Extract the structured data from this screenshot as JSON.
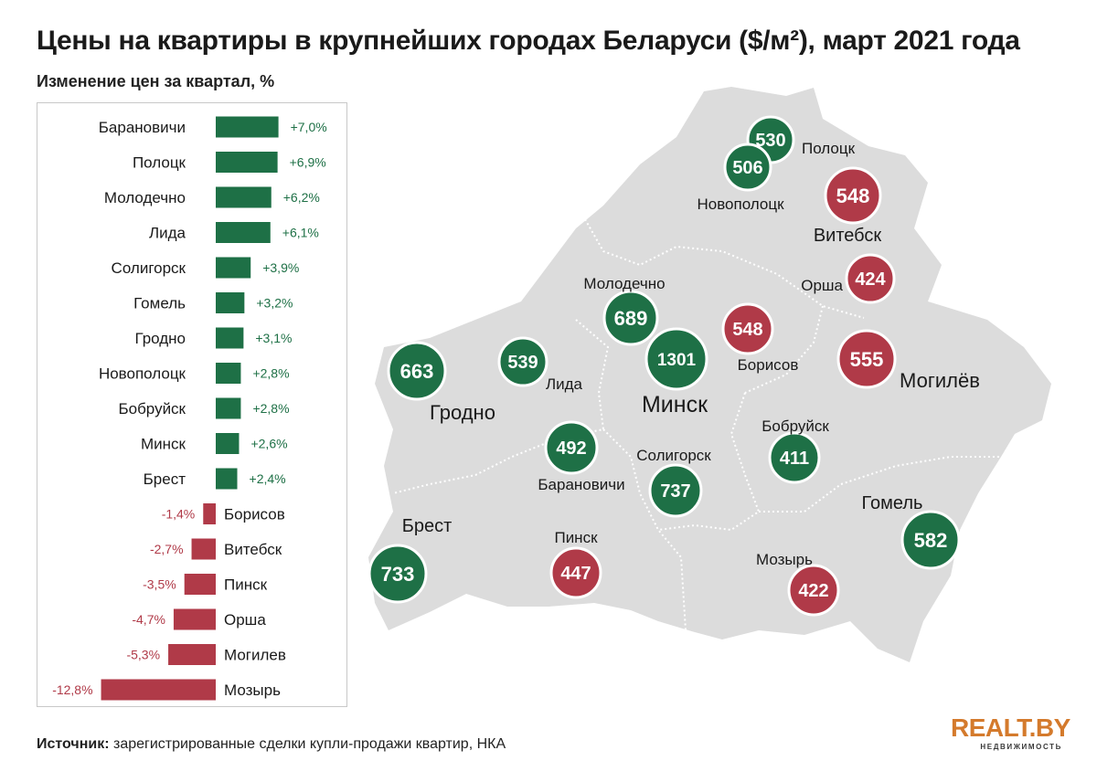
{
  "title": "Цены на квартиры в крупнейших городах Беларуси ($/м²), март 2021 года",
  "subtitle": "Изменение цен за квартал, %",
  "colors": {
    "positive": "#1e7046",
    "negative": "#b03a48",
    "map_fill": "#dcdcdc",
    "map_borders": "#ffffff"
  },
  "chart_data": [
    {
      "type": "bar",
      "orientation": "horizontal",
      "title": "Изменение цен за квартал, %",
      "categories": [
        "Барановичи",
        "Полоцк",
        "Молодечно",
        "Лида",
        "Солигорск",
        "Гомель",
        "Гродно",
        "Новополоцк",
        "Бобруйск",
        "Минск",
        "Брест",
        "Борисов",
        "Витебск",
        "Пинск",
        "Орша",
        "Могилев",
        "Мозырь"
      ],
      "values": [
        7.0,
        6.9,
        6.2,
        6.1,
        3.9,
        3.2,
        3.1,
        2.8,
        2.8,
        2.6,
        2.4,
        -1.4,
        -2.7,
        -3.5,
        -4.7,
        -5.3,
        -12.8
      ],
      "value_labels": [
        "+7,0%",
        "+6,9%",
        "+6,2%",
        "+6,1%",
        "+3,9%",
        "+3,2%",
        "+3,1%",
        "+2,8%",
        "+2,8%",
        "+2,6%",
        "+2,4%",
        "-1,4%",
        "-2,7%",
        "-3,5%",
        "-4,7%",
        "-5,3%",
        "-12,8%"
      ],
      "grid": false,
      "legend": "none"
    },
    {
      "type": "map",
      "title": "Цены на квартиры ($/м²)",
      "cities": [
        {
          "name": "Полоцк",
          "value": 530,
          "status": "up"
        },
        {
          "name": "Новополоцк",
          "value": 506,
          "status": "up"
        },
        {
          "name": "Витебск",
          "value": 548,
          "status": "down"
        },
        {
          "name": "Орша",
          "value": 424,
          "status": "down"
        },
        {
          "name": "Молодечно",
          "value": 689,
          "status": "up"
        },
        {
          "name": "Борисов",
          "value": 548,
          "status": "down"
        },
        {
          "name": "Минск",
          "value": 1301,
          "status": "up"
        },
        {
          "name": "Могилёв",
          "value": 555,
          "status": "down"
        },
        {
          "name": "Гродно",
          "value": 663,
          "status": "up"
        },
        {
          "name": "Лида",
          "value": 539,
          "status": "up"
        },
        {
          "name": "Бобруйск",
          "value": 411,
          "status": "up"
        },
        {
          "name": "Барановичи",
          "value": 492,
          "status": "up"
        },
        {
          "name": "Солигорск",
          "value": 737,
          "status": "up"
        },
        {
          "name": "Гомель",
          "value": 582,
          "status": "up"
        },
        {
          "name": "Брест",
          "value": 733,
          "status": "up"
        },
        {
          "name": "Пинск",
          "value": 447,
          "status": "down"
        },
        {
          "name": "Мозырь",
          "value": 422,
          "status": "down"
        }
      ]
    }
  ],
  "footer": {
    "source_label": "Источник:",
    "source_text": " зарегистрированные сделки купли-продажи квартир, НКА"
  },
  "logo": {
    "main": "REALT.BY",
    "sub": "НЕДВИЖИМОСТЬ"
  }
}
